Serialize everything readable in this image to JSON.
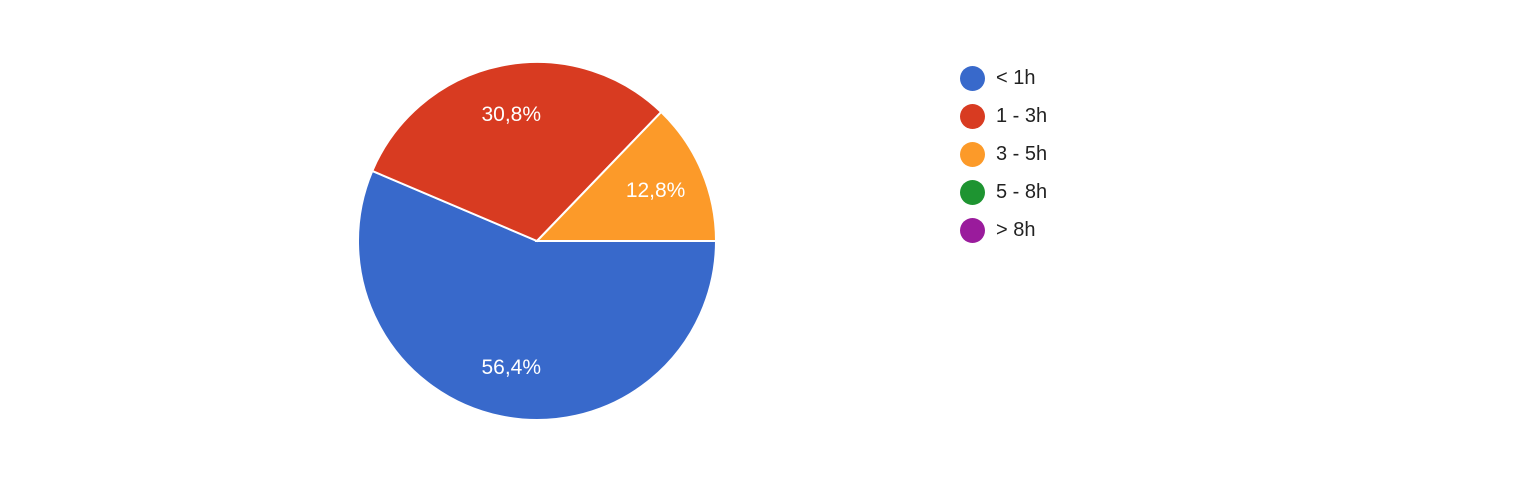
{
  "chart_data": {
    "type": "pie",
    "categories": [
      "< 1h",
      "1 - 3h",
      "3 - 5h",
      "5 - 8h",
      "> 8h"
    ],
    "values": [
      56.4,
      30.8,
      12.8,
      0,
      0
    ],
    "value_labels": [
      "56,4%",
      "30,8%",
      "12,8%",
      "",
      ""
    ],
    "colors": [
      "#3869CB",
      "#D83B21",
      "#FC9A29",
      "#1E9431",
      "#9A1B9C"
    ],
    "legend_position": "right",
    "start_angle": "3 o'clock, counter-clockwise for the following slices after the first clockwise slice"
  }
}
